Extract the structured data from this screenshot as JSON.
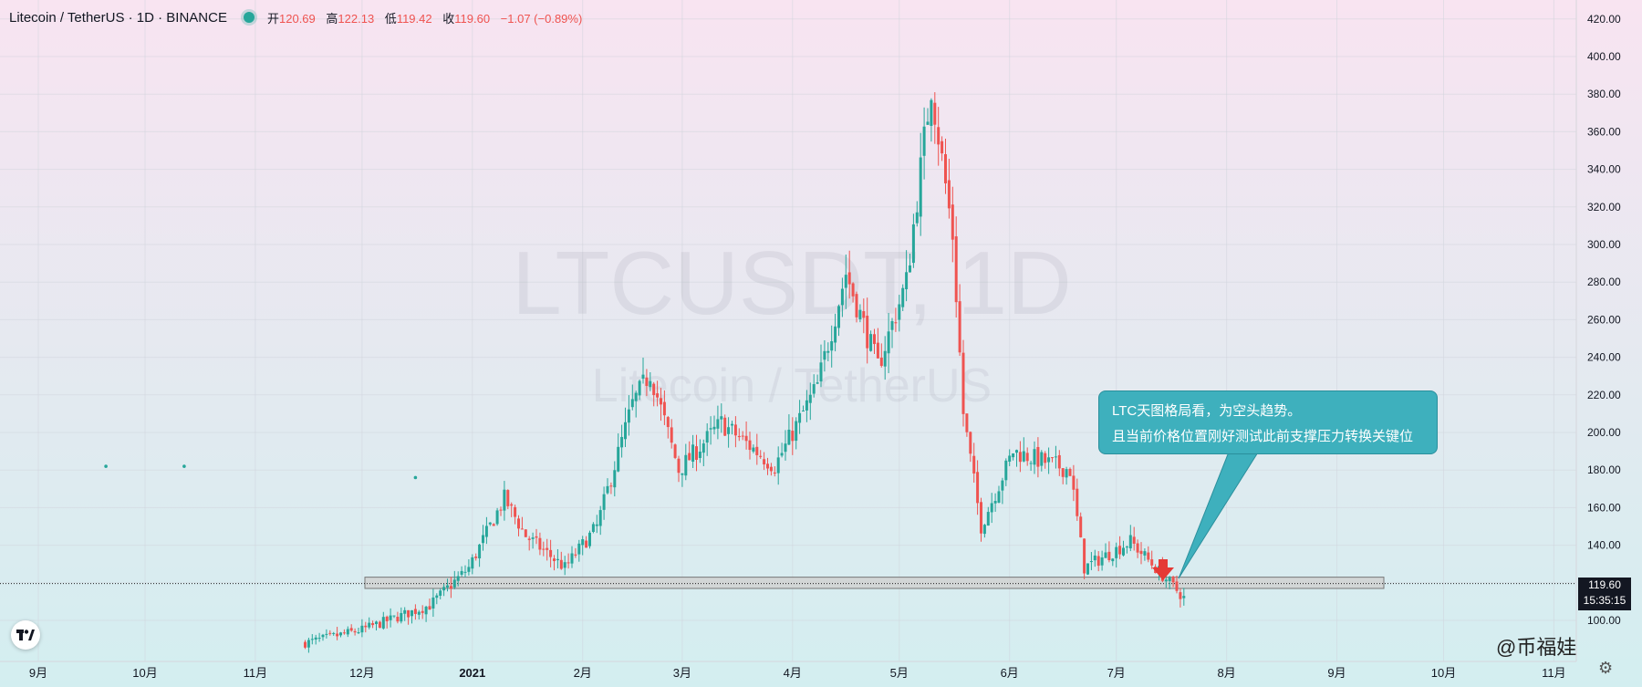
{
  "header": {
    "symbol": "Litecoin / TetherUS · 1D · BINANCE",
    "open_label": "开",
    "open": "120.69",
    "high_label": "高",
    "high": "122.13",
    "low_label": "低",
    "low": "119.42",
    "close_label": "收",
    "close": "119.60",
    "change": "−1.07 (−0.89%)"
  },
  "watermark": {
    "ticker": "LTCUSDT, 1D",
    "name": "Litecoin / TetherUS"
  },
  "callout": {
    "line1": "LTC天图格局看，为空头趋势。",
    "line2": "且当前价格位置刚好测试此前支撑压力转换关键位"
  },
  "price_tag": {
    "price": "119.60",
    "countdown": "15:35:15"
  },
  "credit": "@币福娃",
  "colors": {
    "up": "#26a69a",
    "down": "#ef5350",
    "bg_top": "#f8e4f1",
    "bg_bottom": "#d3eef0",
    "callout": "#3eb0bd",
    "arrow": "#e53935"
  },
  "icons": {
    "logo": "tradingview-logo-icon",
    "settings": "gear-icon",
    "marker": "down-arrow-icon"
  },
  "chart_data": {
    "type": "candlestick",
    "y_ticks": [
      "100.00",
      "120.00",
      "140.00",
      "160.00",
      "180.00",
      "200.00",
      "220.00",
      "240.00",
      "260.00",
      "280.00",
      "300.00",
      "320.00",
      "340.00",
      "360.00",
      "380.00",
      "400.00",
      "420.00"
    ],
    "ylim": [
      88,
      426
    ],
    "x_labels": [
      "9月",
      "10月",
      "11月",
      "12月",
      "2021",
      "2月",
      "3月",
      "4月",
      "5月",
      "6月",
      "7月",
      "8月",
      "9月",
      "10月",
      "11月"
    ],
    "support_zone": [
      117,
      123
    ],
    "current_price": 119.6,
    "key_points": [
      {
        "date": "2020-11-15",
        "price": 88
      },
      {
        "date": "2020-12-01",
        "price": 95
      },
      {
        "date": "2020-12-20",
        "price": 108
      },
      {
        "date": "2020-12-31",
        "price": 128
      },
      {
        "date": "2021-01-10",
        "price": 165
      },
      {
        "date": "2021-01-16",
        "price": 145
      },
      {
        "date": "2021-01-27",
        "price": 128
      },
      {
        "date": "2021-02-05",
        "price": 150
      },
      {
        "date": "2021-02-15",
        "price": 215
      },
      {
        "date": "2021-02-20",
        "price": 232
      },
      {
        "date": "2021-02-28",
        "price": 180
      },
      {
        "date": "2021-03-12",
        "price": 205
      },
      {
        "date": "2021-03-27",
        "price": 182
      },
      {
        "date": "2021-04-08",
        "price": 225
      },
      {
        "date": "2021-04-16",
        "price": 285
      },
      {
        "date": "2021-04-25",
        "price": 235
      },
      {
        "date": "2021-05-03",
        "price": 280
      },
      {
        "date": "2021-05-10",
        "price": 385
      },
      {
        "date": "2021-05-16",
        "price": 305
      },
      {
        "date": "2021-05-19",
        "price": 210
      },
      {
        "date": "2021-05-24",
        "price": 150
      },
      {
        "date": "2021-06-02",
        "price": 190
      },
      {
        "date": "2021-06-18",
        "price": 180
      },
      {
        "date": "2021-06-22",
        "price": 128
      },
      {
        "date": "2021-07-05",
        "price": 142
      },
      {
        "date": "2021-07-20",
        "price": 112
      },
      {
        "date": "2021-07-24",
        "price": 120
      }
    ],
    "dots": [
      {
        "date": "2020-09-20",
        "price": 182
      },
      {
        "date": "2020-10-12",
        "price": 182
      },
      {
        "date": "2020-12-16",
        "price": 176
      }
    ]
  }
}
